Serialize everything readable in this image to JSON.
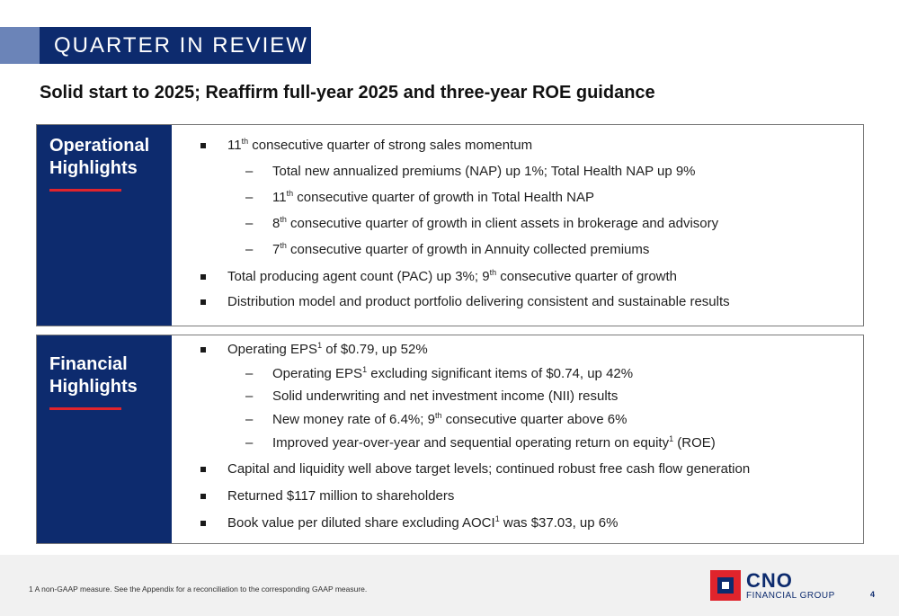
{
  "header": {
    "title": "QUARTER IN REVIEW"
  },
  "subtitle": "Solid start to 2025; Reaffirm full-year 2025 and three-year ROE guidance",
  "operational": {
    "title_line1": "Operational",
    "title_line2": "Highlights",
    "items": [
      {
        "pre": "11",
        "sup": "th",
        "post": " consecutive quarter of strong sales momentum"
      },
      {
        "pre": "Total new annualized premiums (NAP) up 1%; Total Health NAP up 9%",
        "sup": "",
        "post": ""
      },
      {
        "pre": "11",
        "sup": "th",
        "post": " consecutive quarter of growth in Total Health NAP"
      },
      {
        "pre": "8",
        "sup": "th",
        "post": " consecutive quarter of growth in client assets in brokerage and advisory"
      },
      {
        "pre": "7",
        "sup": "th",
        "post": " consecutive quarter of growth in Annuity collected premiums"
      },
      {
        "pre": "Total producing agent count (PAC) up 3%; 9",
        "sup": "th",
        "post": " consecutive quarter of growth"
      },
      {
        "pre": "Distribution model and product portfolio delivering consistent and sustainable results",
        "sup": "",
        "post": ""
      }
    ]
  },
  "financial": {
    "title_line1": "Financial",
    "title_line2": "Highlights",
    "items": [
      {
        "pre": "Operating EPS",
        "sup": "1",
        "post": " of $0.79, up 52%"
      },
      {
        "pre": "Operating EPS",
        "sup": "1",
        "post": " excluding significant items of $0.74, up 42%"
      },
      {
        "pre": "Solid underwriting and net investment income (NII) results",
        "sup": "",
        "post": ""
      },
      {
        "pre": "New money rate of 6.4%; 9",
        "sup": "th",
        "post": " consecutive quarter above 6%"
      },
      {
        "pre": "Improved year-over-year and sequential operating return on equity",
        "sup": "1",
        "post": " (ROE)"
      },
      {
        "pre": "Capital and liquidity well above target levels; continued robust free cash flow generation",
        "sup": "",
        "post": ""
      },
      {
        "pre": "Returned $117 million to shareholders",
        "sup": "",
        "post": ""
      },
      {
        "pre": "Book value per diluted share excluding AOCI",
        "sup": "1",
        "post": " was $37.03, up 6%"
      }
    ]
  },
  "footer": {
    "footnote": "1  A non-GAAP measure. See the Appendix for a reconciliation to the corresponding GAAP measure.",
    "logo_name": "CNO",
    "logo_sub": "FINANCIAL GROUP",
    "page_number": "4"
  },
  "colors": {
    "navy": "#0d2b6e",
    "red": "#e0242c",
    "band": "#6b84b8"
  }
}
